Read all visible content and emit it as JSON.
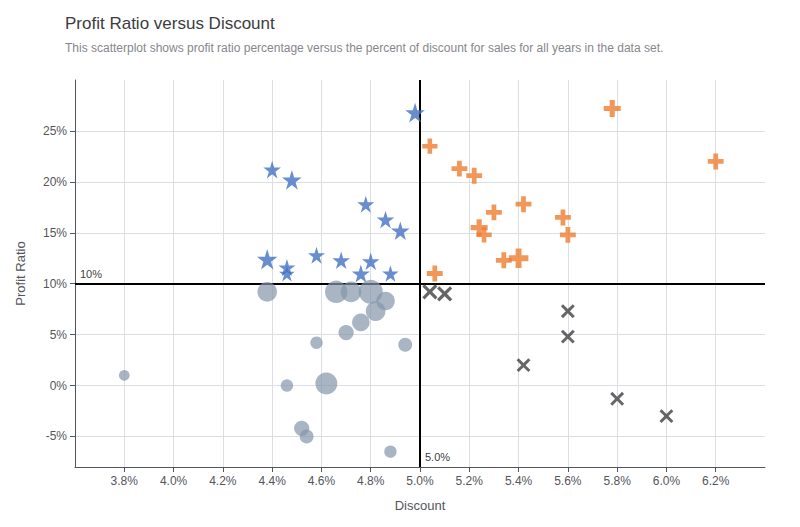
{
  "chart_data": {
    "type": "scatter",
    "title": "Profit Ratio versus Discount",
    "subtitle": "This scatterplot shows profit ratio percentage versus the percent of discount for sales for all years in the data set.",
    "xlabel": "Discount",
    "ylabel": "Profit Ratio",
    "xlim": [
      0.036,
      0.064
    ],
    "ylim": [
      -0.08,
      0.3
    ],
    "xticks": [
      {
        "value": 0.038,
        "label": "3.8%"
      },
      {
        "value": 0.04,
        "label": "4.0%"
      },
      {
        "value": 0.042,
        "label": "4.2%"
      },
      {
        "value": 0.044,
        "label": "4.4%"
      },
      {
        "value": 0.046,
        "label": "4.6%"
      },
      {
        "value": 0.048,
        "label": "4.8%"
      },
      {
        "value": 0.05,
        "label": "5.0%"
      },
      {
        "value": 0.052,
        "label": "5.2%"
      },
      {
        "value": 0.054,
        "label": "5.4%"
      },
      {
        "value": 0.056,
        "label": "5.6%"
      },
      {
        "value": 0.058,
        "label": "5.8%"
      },
      {
        "value": 0.06,
        "label": "6.0%"
      },
      {
        "value": 0.062,
        "label": "6.2%"
      }
    ],
    "yticks": [
      {
        "value": -0.05,
        "label": "-5%"
      },
      {
        "value": 0.0,
        "label": "0%"
      },
      {
        "value": 0.05,
        "label": "5%"
      },
      {
        "value": 0.1,
        "label": "10%"
      },
      {
        "value": 0.15,
        "label": "15%"
      },
      {
        "value": 0.2,
        "label": "20%"
      },
      {
        "value": 0.25,
        "label": "25%"
      }
    ],
    "grid": true,
    "reference_lines": [
      {
        "axis": "x",
        "value": 0.05,
        "label": "5.0%",
        "color": "#000000"
      },
      {
        "axis": "y",
        "value": 0.1,
        "label": "10%",
        "color": "#000000"
      }
    ],
    "series": [
      {
        "color": "#4472C4",
        "marker": "star",
        "x": [
          0.0498,
          0.044,
          0.0448,
          0.0478,
          0.0486,
          0.0492,
          0.0438,
          0.0446,
          0.0446,
          0.0458,
          0.0468,
          0.0476,
          0.048,
          0.0488
        ],
        "y": [
          0.268,
          0.212,
          0.202,
          0.178,
          0.163,
          0.152,
          0.124,
          0.116,
          0.11,
          0.128,
          0.123,
          0.11,
          0.122,
          0.11
        ],
        "sizes": [
          200,
          160,
          200,
          150,
          160,
          180,
          220,
          150,
          130,
          150,
          160,
          170,
          160,
          140
        ]
      },
      {
        "color": "#ED7D31",
        "marker": "plus",
        "x": [
          0.0504,
          0.0506,
          0.0516,
          0.0522,
          0.0524,
          0.0526,
          0.053,
          0.0534,
          0.054,
          0.0542,
          0.0558,
          0.056,
          0.0578,
          0.062
        ],
        "y": [
          0.235,
          0.11,
          0.213,
          0.206,
          0.155,
          0.148,
          0.17,
          0.123,
          0.125,
          0.178,
          0.165,
          0.148,
          0.272,
          0.22
        ],
        "sizes": [
          120,
          130,
          130,
          130,
          150,
          120,
          130,
          130,
          200,
          130,
          130,
          130,
          150,
          130
        ]
      },
      {
        "color": "#8496A9",
        "marker": "circle",
        "x": [
          0.038,
          0.0438,
          0.0446,
          0.0452,
          0.0454,
          0.0458,
          0.0462,
          0.0466,
          0.047,
          0.0472,
          0.0476,
          0.048,
          0.0482,
          0.0486,
          0.0488,
          0.0494
        ],
        "y": [
          0.01,
          0.092,
          0.0,
          -0.042,
          -0.05,
          0.042,
          0.002,
          0.092,
          0.052,
          0.092,
          0.062,
          0.092,
          0.073,
          0.083,
          -0.065,
          0.04
        ],
        "sizes": [
          60,
          200,
          80,
          120,
          100,
          80,
          250,
          260,
          120,
          220,
          160,
          300,
          200,
          180,
          80,
          100
        ]
      },
      {
        "color": "#404040",
        "marker": "x",
        "x": [
          0.0504,
          0.051,
          0.0542,
          0.056,
          0.056,
          0.058,
          0.06
        ],
        "y": [
          0.092,
          0.09,
          0.02,
          0.073,
          0.048,
          -0.013,
          -0.03
        ],
        "sizes": [
          120,
          120,
          100,
          100,
          100,
          100,
          100
        ]
      }
    ]
  }
}
